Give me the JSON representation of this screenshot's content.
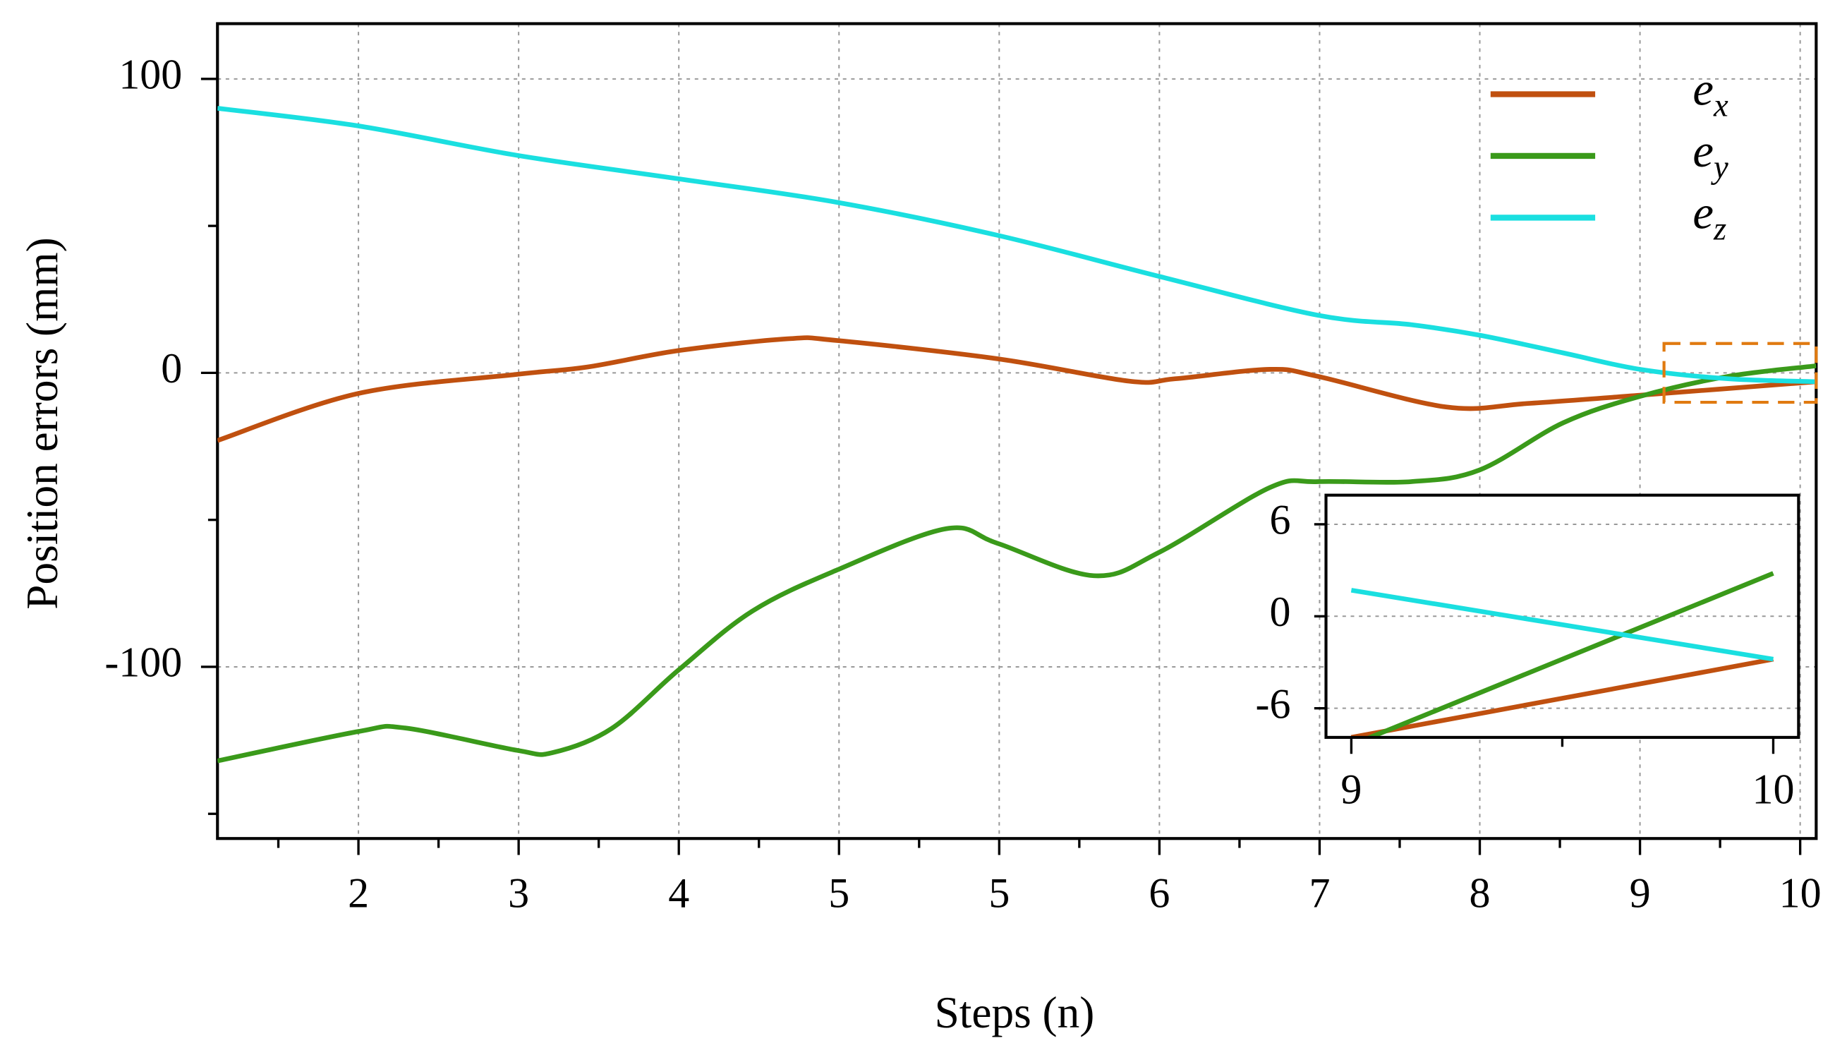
{
  "chart_data": {
    "type": "line",
    "xlabel": "Steps (n)",
    "ylabel": "Position errors (mm)",
    "xlim": [
      1.12,
      11.1
    ],
    "ylim": [
      -158.4,
      118.8
    ],
    "xticks": [
      2,
      3,
      4,
      5,
      {
        "value": 6,
        "label": "5"
      },
      {
        "value": 7,
        "label": "6"
      },
      {
        "value": 8,
        "label": "7"
      },
      {
        "value": 9,
        "label": "8"
      },
      {
        "value": 10,
        "label": "9"
      },
      {
        "value": 11,
        "label": "10"
      }
    ],
    "xminorticks": [
      1.5,
      2.5,
      3.5,
      4.5,
      5.5,
      6.5,
      7.5,
      8.5,
      9.5,
      10.5
    ],
    "yticks": [
      -100,
      0,
      100
    ],
    "yminorticks": [
      -150,
      -50,
      50
    ],
    "grid": true,
    "legend": "upper right",
    "series": [
      {
        "name": "ex",
        "color": "#c0500f",
        "x": [
          1.12,
          2,
          2.99,
          3.43,
          4.0,
          4.68,
          4.99,
          5.99,
          6.81,
          7.1,
          7.69,
          7.99,
          8.79,
          9.3,
          10.0,
          11.1
        ],
        "values": [
          -23,
          -7,
          -0.5,
          2,
          7.6,
          11.6,
          11,
          4.8,
          -2.8,
          -2,
          1.2,
          -1.2,
          -11.6,
          -10.4,
          -7.6,
          -3
        ]
      },
      {
        "name": "ey",
        "color": "#3a9a1a",
        "x": [
          1.12,
          2,
          2.29,
          2.99,
          3.21,
          3.58,
          4.0,
          4.46,
          4.99,
          5.67,
          5.99,
          6.59,
          7.0,
          7.69,
          7.99,
          8.57,
          9.0,
          9.52,
          10.0,
          10.55,
          11.1
        ],
        "values": [
          -132,
          -122,
          -120.8,
          -128.4,
          -129.2,
          -121,
          -101,
          -81,
          -67,
          -53,
          -58,
          -69,
          -61,
          -39,
          -37,
          -37,
          -33,
          -17,
          -8,
          -1.2,
          2.4
        ]
      },
      {
        "name": "ez",
        "color": "#1adfe0",
        "x": [
          1.12,
          2,
          2.99,
          4.0,
          4.99,
          5.99,
          7.0,
          7.99,
          8.57,
          9.0,
          9.52,
          10.0,
          10.55,
          11.1
        ],
        "values": [
          90,
          84,
          74,
          66,
          58,
          46.8,
          32.8,
          19.6,
          16.4,
          12.8,
          6.8,
          1.2,
          -2,
          -3
        ]
      }
    ],
    "zoom_box": {
      "xlim": [
        10.15,
        11.1
      ],
      "ylim": [
        -10,
        10
      ],
      "color": "#e07a10"
    },
    "inset": {
      "xlim": [
        8.94,
        10.06
      ],
      "ylim": [
        -7.9,
        7.9
      ],
      "xticks": [
        9,
        10
      ],
      "xminorticks": [
        9.5
      ],
      "yticks": [
        -6,
        0,
        6
      ],
      "series": [
        {
          "color": "#c0500f",
          "x": [
            9,
            10
          ],
          "values": [
            -7.9,
            -2.8
          ]
        },
        {
          "color": "#3a9a1a",
          "x": [
            9,
            10
          ],
          "values": [
            -8.4,
            2.8
          ]
        },
        {
          "color": "#1adfe0",
          "x": [
            9,
            10
          ],
          "values": [
            1.7,
            -2.8
          ]
        }
      ]
    }
  }
}
